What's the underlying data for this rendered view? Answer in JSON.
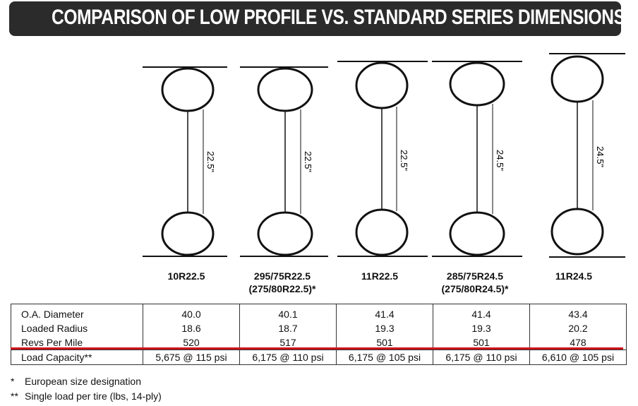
{
  "title": "COMPARISON OF LOW PROFILE VS. STANDARD SERIES DIMENSIONS",
  "tires": [
    {
      "size": "10R22.5",
      "alt_size": "",
      "rim_dim": "22.5\""
    },
    {
      "size": "295/75R22.5",
      "alt_size": "(275/80R22.5)*",
      "rim_dim": "22.5\""
    },
    {
      "size": "11R22.5",
      "alt_size": "",
      "rim_dim": "22.5\""
    },
    {
      "size": "285/75R24.5",
      "alt_size": "(275/80R24.5)*",
      "rim_dim": "24.5\""
    },
    {
      "size": "11R24.5",
      "alt_size": "",
      "rim_dim": "24.5\""
    }
  ],
  "table": {
    "rows": [
      {
        "label": "O.A. Diameter",
        "values": [
          "40.0",
          "40.1",
          "41.4",
          "41.4",
          "43.4"
        ]
      },
      {
        "label": "Loaded Radius",
        "values": [
          "18.6",
          "18.7",
          "19.3",
          "19.3",
          "20.2"
        ]
      },
      {
        "label": "Revs Per Mile",
        "values": [
          "520",
          "517",
          "501",
          "501",
          "478"
        ]
      },
      {
        "label": "Load Capacity**",
        "values": [
          "5,675 @ 115 psi",
          "6,175 @ 110 psi",
          "6,175 @ 105 psi",
          "6,175 @ 110 psi",
          "6,610 @ 105 psi"
        ]
      }
    ]
  },
  "footnotes": [
    {
      "mark": "*",
      "text": "European size designation"
    },
    {
      "mark": "**",
      "text": "Single load per tire (lbs, 14-ply)"
    }
  ],
  "colors": {
    "banner": "#2b2b2b",
    "highlight_line": "#d0131b"
  }
}
